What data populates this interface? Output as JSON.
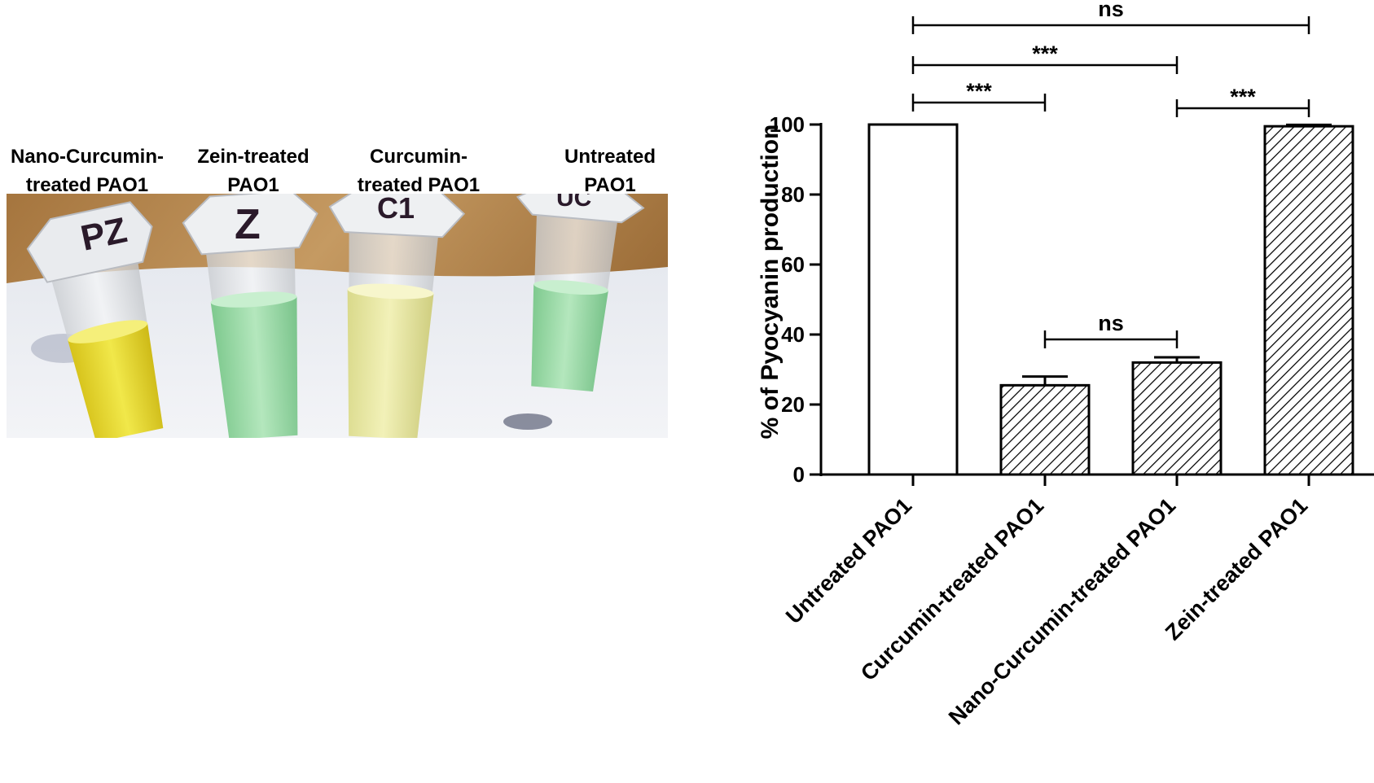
{
  "photo": {
    "tube_labels": [
      "Nano-Curcumin-\ntreated PAO1",
      "Zein-treated\nPAO1",
      "Curcumin-\ntreated PAO1",
      "Untreated\nPAO1"
    ],
    "cap_marks": [
      "PZ",
      "Z",
      "C1",
      "UC"
    ]
  },
  "chart_data": {
    "type": "bar",
    "categories": [
      "Untreated PAO1",
      "Curcumin-treated PAO1",
      "Nano-Curcumin-treated PAO1",
      "Zein-treated PAO1"
    ],
    "values": [
      100,
      25.5,
      32,
      99.5
    ],
    "errors": [
      0,
      2.5,
      1.5,
      0.4
    ],
    "ylabel": "% of Pyocyanin production",
    "ylim": [
      0,
      100
    ],
    "yticks": [
      "0",
      "20",
      "40",
      "60",
      "80",
      "100"
    ],
    "bar_fill": [
      "white",
      "hatched",
      "hatched",
      "hatched"
    ],
    "significance": [
      {
        "from": 0,
        "to": 3,
        "label": "ns"
      },
      {
        "from": 0,
        "to": 2,
        "label": "***"
      },
      {
        "from": 0,
        "to": 1,
        "label": "***"
      },
      {
        "from": 2,
        "to": 3,
        "label": "***"
      },
      {
        "from": 1,
        "to": 2,
        "label": "ns"
      }
    ]
  }
}
